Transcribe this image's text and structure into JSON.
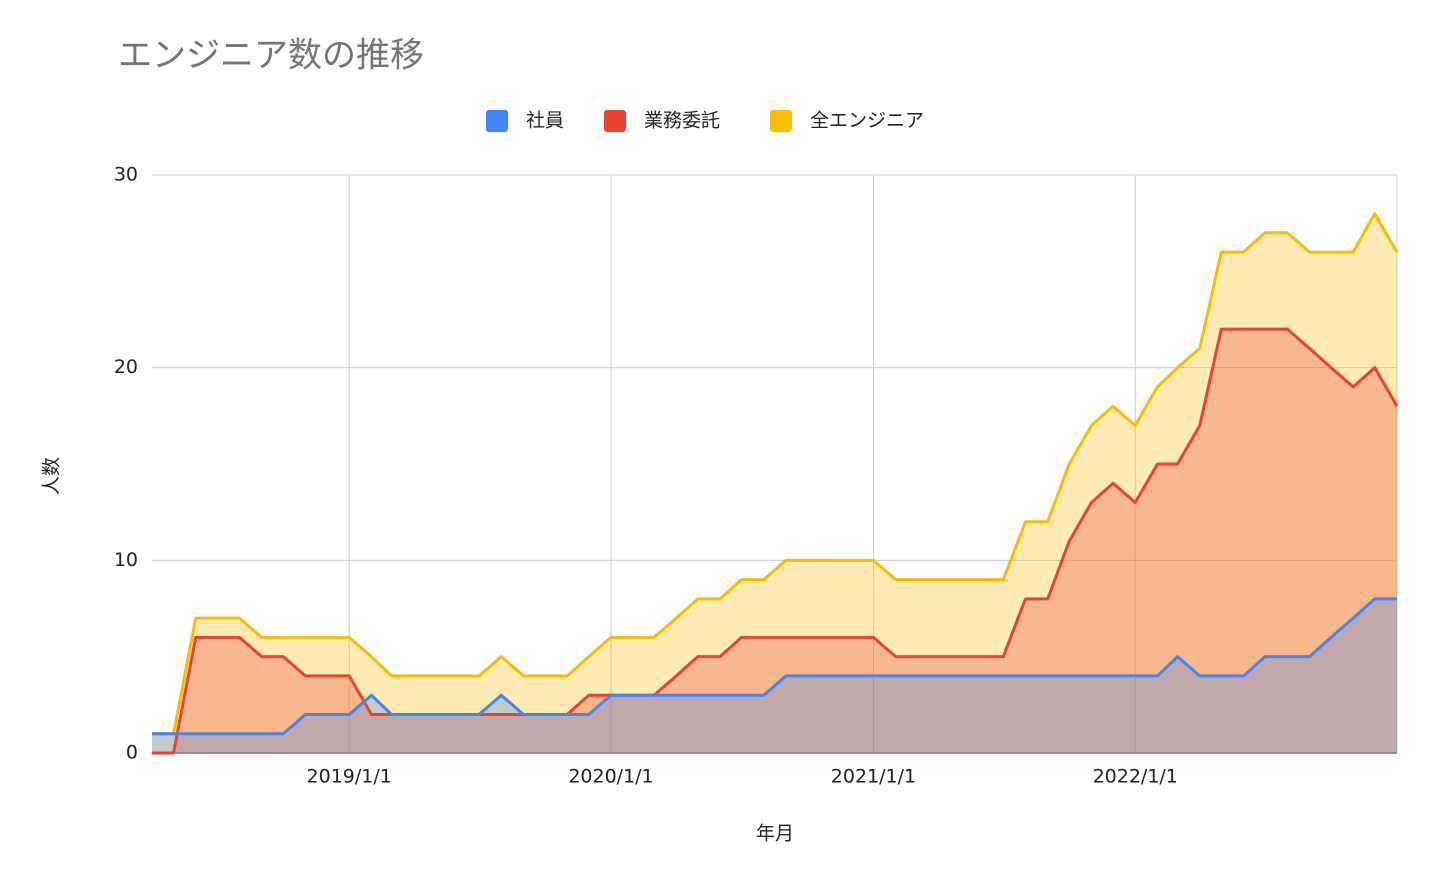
{
  "chart_data": {
    "type": "area",
    "title": "エンジニア数の推移",
    "x_label": "年月",
    "y_label": "人数",
    "x": [
      "2018/4/1",
      "2018/5/1",
      "2018/6/1",
      "2018/7/1",
      "2018/8/1",
      "2018/9/1",
      "2018/10/1",
      "2018/11/1",
      "2018/12/1",
      "2019/1/1",
      "2019/2/1",
      "2019/3/1",
      "2019/4/1",
      "2019/5/1",
      "2019/6/1",
      "2019/7/1",
      "2019/8/1",
      "2019/9/1",
      "2019/10/1",
      "2019/11/1",
      "2019/12/1",
      "2020/1/1",
      "2020/2/1",
      "2020/3/1",
      "2020/4/1",
      "2020/5/1",
      "2020/6/1",
      "2020/7/1",
      "2020/8/1",
      "2020/9/1",
      "2020/10/1",
      "2020/11/1",
      "2020/12/1",
      "2021/1/1",
      "2021/2/1",
      "2021/3/1",
      "2021/4/1",
      "2021/5/1",
      "2021/6/1",
      "2021/7/1",
      "2021/8/1",
      "2021/9/1",
      "2021/10/1",
      "2021/11/1",
      "2021/12/1",
      "2022/1/1",
      "2022/2/1",
      "2022/3/1",
      "2022/4/1",
      "2022/5/1",
      "2022/6/1",
      "2022/7/1",
      "2022/8/1",
      "2022/9/1",
      "2022/10/1",
      "2022/11/1",
      "2022/12/1",
      "2023/1/1"
    ],
    "series": [
      {
        "name": "社員",
        "color": "#4285f4",
        "values": [
          1,
          1,
          1,
          1,
          1,
          1,
          1,
          2,
          2,
          2,
          3,
          2,
          2,
          2,
          2,
          2,
          3,
          2,
          2,
          2,
          2,
          3,
          3,
          3,
          3,
          3,
          3,
          3,
          3,
          4,
          4,
          4,
          4,
          4,
          4,
          4,
          4,
          4,
          4,
          4,
          4,
          4,
          4,
          4,
          4,
          4,
          4,
          5,
          4,
          4,
          4,
          5,
          5,
          5,
          6,
          7,
          8,
          8
        ]
      },
      {
        "name": "業務委託",
        "color": "#ea4335",
        "values": [
          0,
          0,
          6,
          6,
          6,
          5,
          5,
          4,
          4,
          4,
          2,
          2,
          2,
          2,
          2,
          2,
          2,
          2,
          2,
          2,
          3,
          3,
          3,
          3,
          4,
          5,
          5,
          6,
          6,
          6,
          6,
          6,
          6,
          6,
          5,
          5,
          5,
          5,
          5,
          5,
          8,
          8,
          11,
          13,
          14,
          13,
          15,
          15,
          17,
          22,
          22,
          22,
          22,
          21,
          20,
          19,
          20,
          18
        ]
      },
      {
        "name": "全エンジニア",
        "color": "#fbbc04",
        "values": [
          1,
          1,
          7,
          7,
          7,
          6,
          6,
          6,
          6,
          6,
          5,
          4,
          4,
          4,
          4,
          4,
          5,
          4,
          4,
          4,
          5,
          6,
          6,
          6,
          7,
          8,
          8,
          9,
          9,
          10,
          10,
          10,
          10,
          10,
          9,
          9,
          9,
          9,
          9,
          9,
          12,
          12,
          15,
          17,
          18,
          17,
          19,
          20,
          21,
          26,
          26,
          27,
          27,
          26,
          26,
          26,
          28,
          26
        ]
      }
    ],
    "xlim": [
      "2018/4/1",
      "2023/1/1"
    ],
    "xticks": [
      "2019/1/1",
      "2020/1/1",
      "2021/1/1",
      "2022/1/1"
    ],
    "ylim": [
      0,
      30
    ],
    "yticks": [
      0,
      10,
      20,
      30
    ],
    "grid": true
  }
}
